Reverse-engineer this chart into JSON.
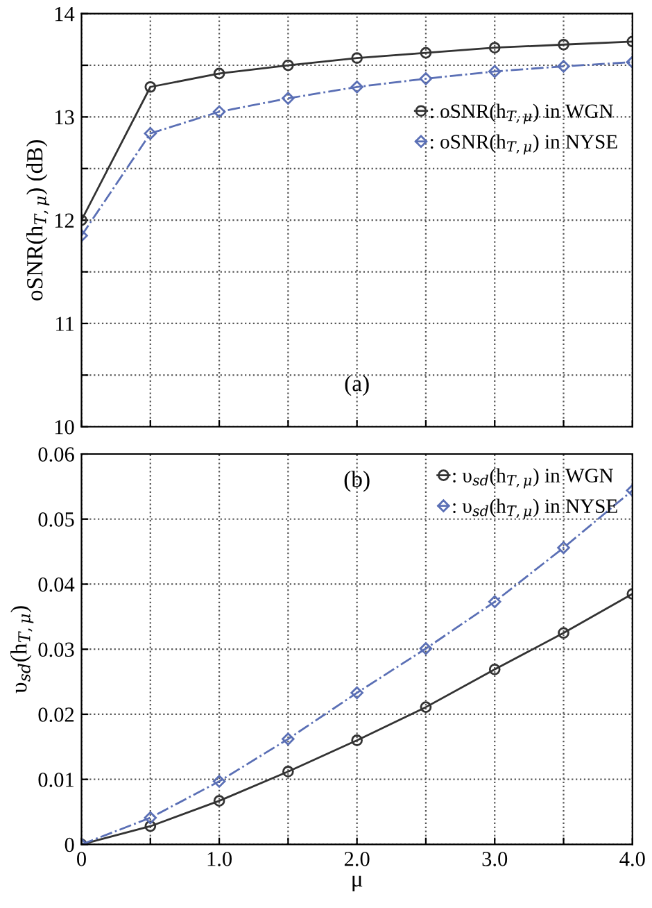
{
  "chart_data": [
    {
      "type": "line",
      "ylabel": "oSNR(h$_{T,μ}$) (dB)",
      "x": [
        0,
        0.5,
        1.0,
        1.5,
        2.0,
        2.5,
        3.0,
        3.5,
        4.0
      ],
      "series": [
        {
          "name": ": oSNR(h$_{T,μ}$) in WGN",
          "color": "#333333",
          "marker": "circle",
          "line_style": "solid",
          "values": [
            12.0,
            13.29,
            13.42,
            13.5,
            13.57,
            13.62,
            13.67,
            13.7,
            13.73
          ]
        },
        {
          "name": ": oSNR(h$_{T,μ}$) in NYSE",
          "color": "#5a6fb5",
          "marker": "diamond",
          "line_style": "dashed",
          "values": [
            11.85,
            12.84,
            13.05,
            13.18,
            13.29,
            13.37,
            13.44,
            13.49,
            13.53
          ]
        }
      ],
      "xlim": [
        0,
        4
      ],
      "xticks": [
        0,
        {
          "value": 0.5,
          "label": null
        },
        1.0,
        {
          "value": 1.5,
          "label": null
        },
        2.0,
        {
          "value": 2.5,
          "label": null
        },
        3.0,
        {
          "value": 3.5,
          "label": null
        },
        4.0
      ],
      "ylim": [
        10,
        14
      ],
      "yticks": [
        10,
        {
          "value": 10.5,
          "label": null
        },
        11,
        {
          "value": 11.5,
          "label": null
        },
        12,
        {
          "value": 12.5,
          "label": null
        },
        13,
        {
          "value": 13.5,
          "label": null
        },
        14
      ],
      "tick_labels": "y",
      "grid": true,
      "legend": "right",
      "annotations": [
        "(a)"
      ]
    },
    {
      "type": "line",
      "xlabel": "μ",
      "ylabel": "υ$_{sd}$(h$_{T,μ}$)",
      "x": [
        0,
        0.5,
        1.0,
        1.5,
        2.0,
        2.5,
        3.0,
        3.5,
        4.0
      ],
      "series": [
        {
          "name": ": υ$_{sd}$(h$_{T,μ}$) in WGN",
          "color": "#333333",
          "marker": "circle",
          "line_style": "solid",
          "values": [
            0,
            0.0028,
            0.0067,
            0.0112,
            0.016,
            0.0211,
            0.0269,
            0.0325,
            0.0385
          ]
        },
        {
          "name": ": υ$_{sd}$(h$_{T,μ}$) in NYSE",
          "color": "#5a6fb5",
          "marker": "diamond",
          "line_style": "dashed",
          "values": [
            0,
            0.0041,
            0.0097,
            0.0162,
            0.0233,
            0.0301,
            0.0373,
            0.0456,
            0.0544
          ]
        }
      ],
      "xlim": [
        0,
        4
      ],
      "xticks": [
        0,
        {
          "value": 0.5,
          "label": null
        },
        {
          "value": 1.0,
          "label": "1.0"
        },
        {
          "value": 1.5,
          "label": null
        },
        {
          "value": 2.0,
          "label": "2.0"
        },
        {
          "value": 2.5,
          "label": null
        },
        {
          "value": 3.0,
          "label": "3.0"
        },
        {
          "value": 3.5,
          "label": null
        },
        {
          "value": 4.0,
          "label": "4.0"
        }
      ],
      "ylim": [
        0,
        0.06
      ],
      "yticks": [
        0,
        0.01,
        0.02,
        0.03,
        0.04,
        0.05,
        0.06
      ],
      "grid": true,
      "legend": "top right",
      "annotations": [
        "(b)"
      ]
    }
  ]
}
